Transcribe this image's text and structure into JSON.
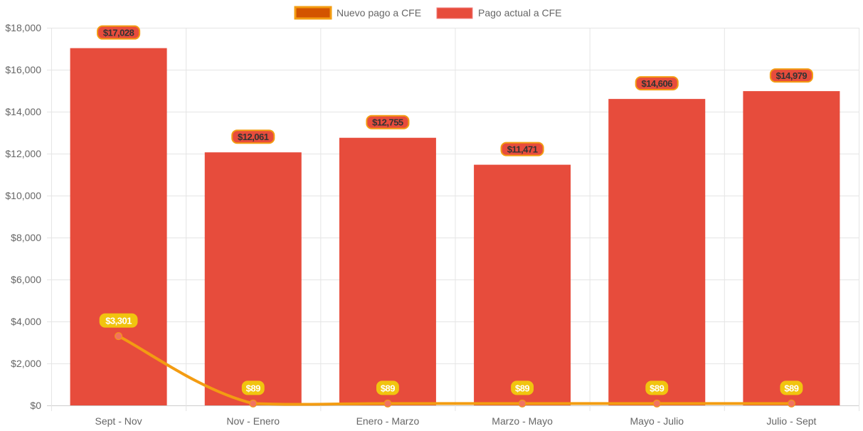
{
  "chart_data": {
    "type": "bar",
    "title": "",
    "xlabel": "",
    "ylabel": "",
    "categories": [
      "Sept - Nov",
      "Nov - Enero",
      "Enero - Marzo",
      "Marzo - Mayo",
      "Mayo - Julio",
      "Julio - Sept"
    ],
    "series": [
      {
        "name": "Nuevo pago a CFE",
        "type": "line",
        "values": [
          3301,
          89,
          89,
          89,
          89,
          89
        ],
        "labels": [
          "$3,301",
          "$89",
          "$89",
          "$89",
          "$89",
          "$89"
        ],
        "color": "#f39c12",
        "point_color": "#f1735f",
        "label_bg": "#f1c40f"
      },
      {
        "name": "Pago actual a CFE",
        "type": "bar",
        "values": [
          17028,
          12061,
          12755,
          11471,
          14606,
          14979
        ],
        "labels": [
          "$17,028",
          "$12,061",
          "$12,755",
          "$11,471",
          "$14,606",
          "$14,979"
        ],
        "color": "#e74c3c"
      }
    ],
    "ylim": [
      0,
      18000
    ],
    "yticks": [
      0,
      2000,
      4000,
      6000,
      8000,
      10000,
      12000,
      14000,
      16000,
      18000
    ],
    "ytick_labels": [
      "$0",
      "$2,000",
      "$4,000",
      "$6,000",
      "$8,000",
      "$10,000",
      "$12,000",
      "$14,000",
      "$16,000",
      "$18,000"
    ],
    "grid": true,
    "legend": "top-center"
  }
}
